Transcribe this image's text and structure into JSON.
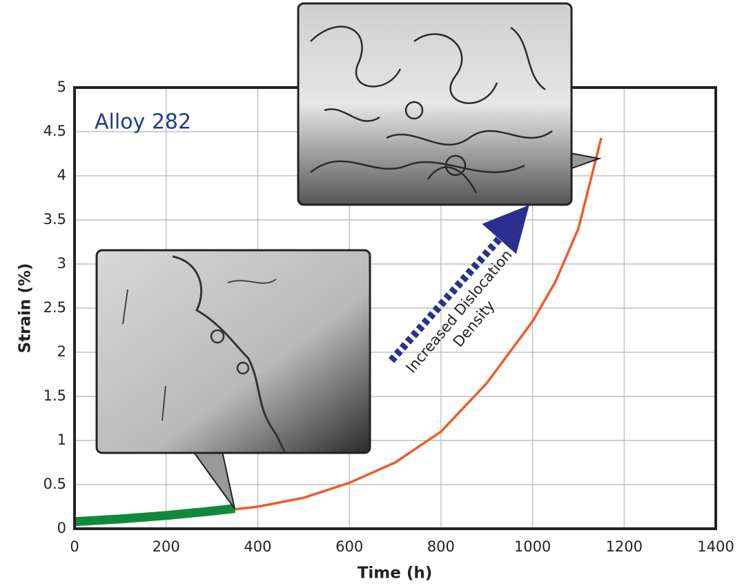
{
  "chart_data": {
    "type": "line",
    "xlabel": "Time (h)",
    "ylabel": "Strain (%)",
    "annotations": [
      "Alloy 282",
      "Increased Dislocation",
      "Density"
    ],
    "series": [
      {
        "color": "#0f8a3c",
        "x": [
          0,
          100,
          200,
          300,
          350
        ],
        "values": [
          0.08,
          0.11,
          0.15,
          0.2,
          0.23
        ]
      },
      {
        "color": "#f05a28",
        "x": [
          350,
          400,
          500,
          600,
          700,
          800,
          900,
          1000,
          1050,
          1100,
          1150
        ],
        "values": [
          0.22,
          0.25,
          0.35,
          0.52,
          0.75,
          1.1,
          1.65,
          2.35,
          2.8,
          3.4,
          4.43
        ]
      }
    ],
    "xlim": [
      0,
      1400
    ],
    "xticks": [
      0,
      200,
      400,
      600,
      800,
      1000,
      1200,
      1400
    ],
    "ylim": [
      0,
      5
    ],
    "yticks": [
      0,
      0.5,
      1,
      1.5,
      2,
      2.5,
      3,
      3.5,
      4,
      4.5,
      5
    ],
    "grid": true
  }
}
